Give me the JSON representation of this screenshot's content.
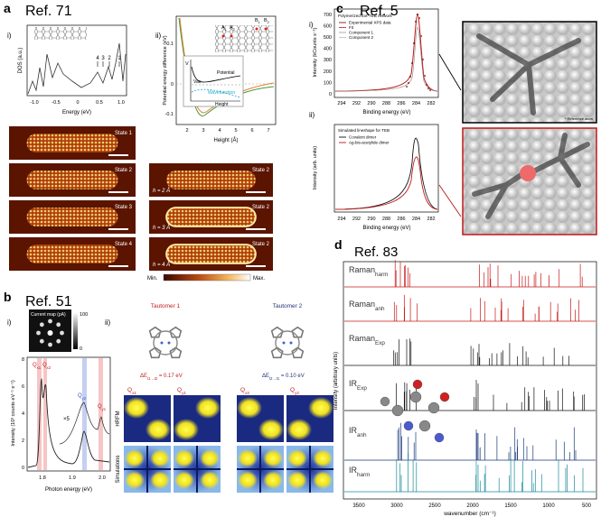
{
  "panel_a": {
    "letter": "a",
    "ref": "Ref. 71",
    "part_i": "i)",
    "part_ii": "ii)",
    "dos": {
      "ylabel": "DOS (a.u.)",
      "xlabel": "Energy (eV)",
      "xticks": [
        "-1.0",
        "-0.5",
        "0",
        "0.5",
        "1.0"
      ],
      "peaks": [
        "4",
        "3",
        "2",
        "1"
      ]
    },
    "potential": {
      "ylabel": "Potential energy difference (eV)",
      "xlabel": "Height (Å)",
      "yticks": [
        "0.1",
        "0",
        "-0.1"
      ],
      "xticks": [
        "2",
        "3",
        "4",
        "5",
        "6",
        "7"
      ],
      "sites": [
        {
          "main": "A",
          "sub": "1"
        },
        {
          "main": "A",
          "sub": "2"
        },
        {
          "main": "B",
          "sub": "1"
        },
        {
          "main": "B",
          "sub": "2"
        }
      ],
      "inset": {
        "v": "V",
        "vac": "Vac",
        "potential": "Potential",
        "wavefunction": "Wavefunction",
        "height": "Height"
      }
    },
    "maps_left": [
      "State 1",
      "State 2",
      "State 3",
      "State 4"
    ],
    "maps_right": [
      {
        "state": "State 2",
        "height": "h = 2 Å"
      },
      {
        "state": "State 2",
        "height": "h = 3 Å"
      },
      {
        "state": "State 2",
        "height": "h = 4 Å"
      }
    ],
    "colorbar": {
      "min": "Min.",
      "max": "Max."
    }
  },
  "panel_b": {
    "letter": "b",
    "ref": "Ref. 51",
    "part_i": "i)",
    "part_ii": "ii)",
    "current_map": {
      "title": "Current map (pA)",
      "max": "100",
      "min": "0"
    },
    "spectrum": {
      "ylabel": "Intensity (10³ counts eV⁻¹ s⁻¹)",
      "xlabel": "Photon energy (eV)",
      "yticks": [
        "0",
        "2",
        "4",
        "6",
        "8"
      ],
      "xticks": [
        "1.8",
        "1.9",
        "2.0"
      ],
      "scale": "×5",
      "peaks": [
        {
          "main": "Q",
          "sub": "x1"
        },
        {
          "main": "Q",
          "sub": "x2"
        },
        {
          "main": "Q",
          "sub": "y2"
        },
        {
          "main": "Q",
          "sub": "y1"
        }
      ]
    },
    "tautomers": [
      {
        "name": "Tautomer 1",
        "energy": {
          "main": "ΔE",
          "sub": "t1→t2",
          "rest": " = 0.17 eV"
        }
      },
      {
        "name": "Tautomer 2",
        "energy": {
          "main": "ΔE",
          "sub": "t2→t1",
          "rest": " = 0.10 eV"
        }
      }
    ],
    "maps": [
      {
        "main": "Q",
        "sub": "x1"
      },
      {
        "main": "Q",
        "sub": "y1"
      },
      {
        "main": "Q",
        "sub": "x2"
      },
      {
        "main": "Q",
        "sub": "y2"
      }
    ],
    "row_labels": [
      "HRFM",
      "Simulations"
    ]
  },
  "panel_c": {
    "letter": "c",
    "ref": "Ref. 5",
    "part_i": "i)",
    "part_ii": "ii)",
    "xps": {
      "ylabel": "Intensity (kCounts s⁻¹)",
      "xlabel": "Binding energy (eV)",
      "yticks": [
        "0",
        "100",
        "200",
        "300",
        "400",
        "500",
        "600",
        "700"
      ],
      "xticks": [
        "294",
        "292",
        "290",
        "288",
        "286",
        "284",
        "282"
      ],
      "legend_title": "Polymerized Ext-TEB network",
      "legend": [
        "Experimental XPS data",
        "Fit",
        "Component 1",
        "Component 2"
      ]
    },
    "sim": {
      "ylabel": "Intensity (arb. units)",
      "xlabel": "Binding energy (eV)",
      "xticks": [
        "294",
        "292",
        "290",
        "288",
        "286",
        "284",
        "282"
      ],
      "legend_title": "Simulated lineshape for TEB",
      "legend": [
        "Covalent dimer",
        "Ag-bis-acetylide dimer"
      ]
    },
    "reference": "* Reference atom"
  },
  "panel_d": {
    "letter": "d",
    "ref": "Ref. 83",
    "spectra": [
      {
        "main": "Raman",
        "sub": "harm"
      },
      {
        "main": "Raman",
        "sub": "anh"
      },
      {
        "main": "Raman",
        "sub": "Exp"
      },
      {
        "main": "IR",
        "sub": "Exp"
      },
      {
        "main": "IR",
        "sub": "anh"
      },
      {
        "main": "IR",
        "sub": "harm"
      }
    ],
    "ylabel": "Intensity (arbitrary units)",
    "xlabel": "wavenumber (cm⁻¹)",
    "xticks": [
      "3500",
      "3000",
      "2500",
      "2000",
      "1500",
      "1000",
      "500"
    ]
  }
}
